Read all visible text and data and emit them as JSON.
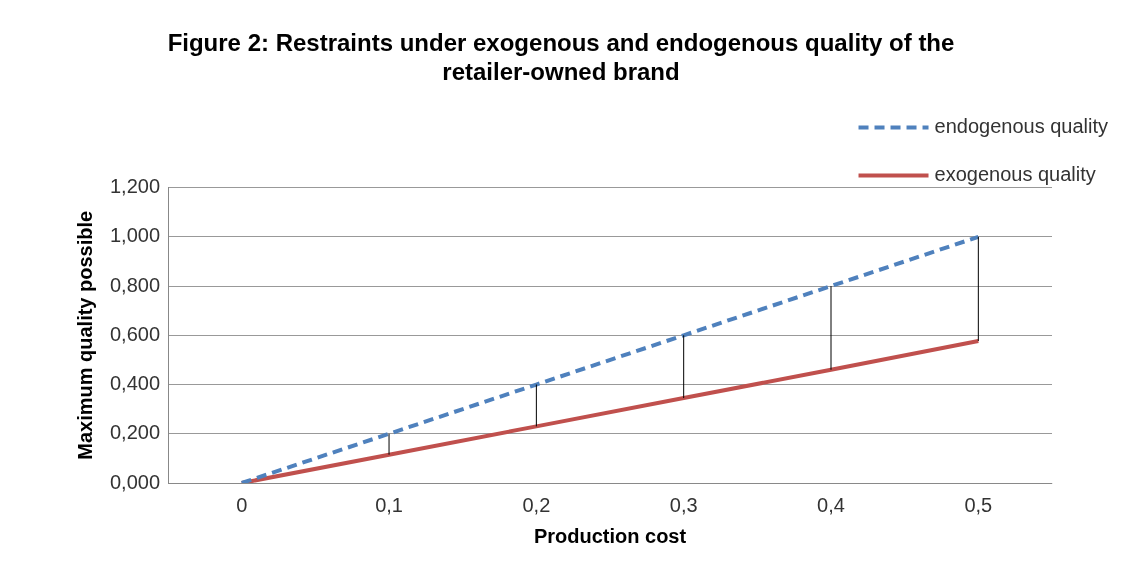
{
  "chart_data": {
    "type": "line",
    "title": "Figure 2: Restraints under exogenous and endogenous quality of the retailer-owned brand",
    "xlabel": "Production cost",
    "ylabel": "Maximum quality possible",
    "categories": [
      "0",
      "0,1",
      "0,2",
      "0,3",
      "0,4",
      "0,5"
    ],
    "series": [
      {
        "name": "endogenous quality",
        "color": "#4f81bd",
        "line_style": "dashed",
        "values": [
          0,
          0.2,
          0.4,
          0.6,
          0.8,
          1.0
        ],
        "errors": [
          [
            0,
            0
          ],
          [
            0.115,
            0.2
          ],
          [
            0.23,
            0.4
          ],
          [
            0.345,
            0.6
          ],
          [
            0.46,
            0.8
          ],
          [
            0.577,
            1.0
          ]
        ]
      },
      {
        "name": "exogenous quality",
        "color": "#c0504d",
        "line_style": "solid",
        "values": [
          0,
          0.115,
          0.23,
          0.345,
          0.46,
          0.577
        ]
      }
    ],
    "ylim": [
      0,
      1.2
    ],
    "yticks": [
      {
        "value": 0,
        "label": "0,000"
      },
      {
        "value": 0.2,
        "label": "0,200"
      },
      {
        "value": 0.4,
        "label": "0,400"
      },
      {
        "value": 0.6,
        "label": "0,600"
      },
      {
        "value": 0.8,
        "label": "0,800"
      },
      {
        "value": 1.0,
        "label": "1,000"
      },
      {
        "value": 1.2,
        "label": "1,200"
      }
    ],
    "grid": "y",
    "legend": "top right",
    "marker": "none"
  }
}
